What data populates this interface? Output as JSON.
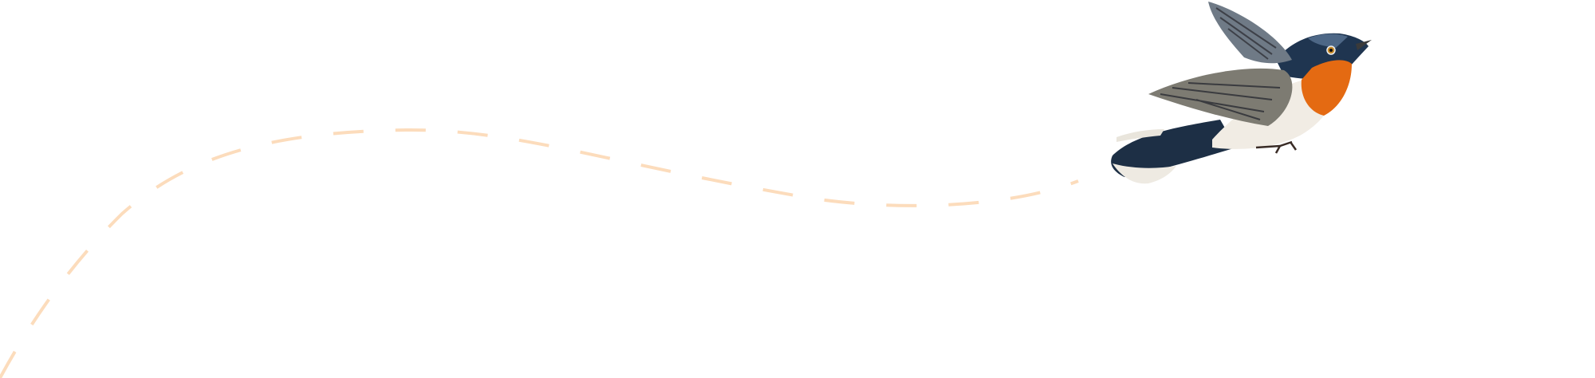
{
  "illustration": {
    "subject": "bird-in-flight",
    "path_style": "dashed",
    "colors": {
      "background": "#ffffff",
      "flight_path": "#fcdcbc",
      "bird_throat": "#e46a12",
      "bird_back": "#1f3550",
      "bird_wing": "#7d7b72",
      "bird_belly": "#f1ece4"
    }
  }
}
